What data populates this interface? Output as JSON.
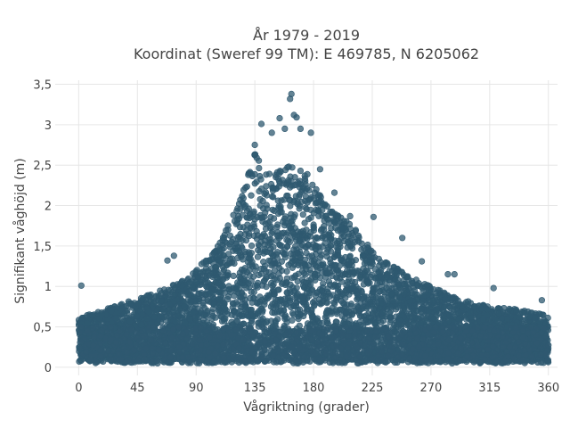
{
  "chart_data": {
    "type": "scatter",
    "title": "År 1979 - 2019",
    "subtitle": "Koordinat (Sweref 99 TM): E 469785, N 6205062",
    "xlabel": "Vågriktning (grader)",
    "ylabel": "Signifikant våghöjd (m)",
    "xlim": [
      -18,
      367
    ],
    "ylim": [
      -0.1,
      3.55
    ],
    "x_ticks": [
      0,
      45,
      90,
      135,
      180,
      225,
      270,
      315,
      360
    ],
    "x_tick_labels": [
      "0",
      "45",
      "90",
      "135",
      "180",
      "225",
      "270",
      "315",
      "360"
    ],
    "y_ticks": [
      0,
      0.5,
      1,
      1.5,
      2,
      2.5,
      3,
      3.5
    ],
    "y_tick_labels": [
      "0",
      "0,5",
      "1",
      "1,5",
      "2",
      "2,5",
      "3",
      "3,5"
    ],
    "grid": true,
    "marker_color": "#2f5970",
    "envelope": {
      "direction_deg": [
        0,
        20,
        45,
        70,
        90,
        110,
        125,
        135,
        145,
        160,
        175,
        190,
        210,
        225,
        250,
        270,
        290,
        315,
        335,
        360
      ],
      "height_upper_m": [
        0.62,
        0.72,
        0.85,
        1.0,
        1.2,
        1.6,
        2.2,
        2.65,
        2.4,
        2.5,
        2.4,
        2.0,
        1.75,
        1.45,
        1.15,
        1.0,
        0.85,
        0.75,
        0.72,
        0.65
      ],
      "height_lower_m": 0.05
    },
    "outliers": [
      {
        "x": 2,
        "y": 1.01
      },
      {
        "x": 68,
        "y": 1.32
      },
      {
        "x": 73,
        "y": 1.38
      },
      {
        "x": 112,
        "y": 1.55
      },
      {
        "x": 130,
        "y": 2.38
      },
      {
        "x": 135,
        "y": 2.75
      },
      {
        "x": 140,
        "y": 3.01
      },
      {
        "x": 148,
        "y": 2.9
      },
      {
        "x": 154,
        "y": 3.08
      },
      {
        "x": 158,
        "y": 2.95
      },
      {
        "x": 163,
        "y": 3.38
      },
      {
        "x": 162,
        "y": 3.32
      },
      {
        "x": 165,
        "y": 3.12
      },
      {
        "x": 167,
        "y": 3.09
      },
      {
        "x": 170,
        "y": 2.95
      },
      {
        "x": 178,
        "y": 2.9
      },
      {
        "x": 185,
        "y": 2.45
      },
      {
        "x": 196,
        "y": 2.16
      },
      {
        "x": 208,
        "y": 1.87
      },
      {
        "x": 226,
        "y": 1.86
      },
      {
        "x": 248,
        "y": 1.6
      },
      {
        "x": 263,
        "y": 1.31
      },
      {
        "x": 283,
        "y": 1.15
      },
      {
        "x": 288,
        "y": 1.15
      },
      {
        "x": 318,
        "y": 0.98
      },
      {
        "x": 355,
        "y": 0.83
      }
    ]
  }
}
